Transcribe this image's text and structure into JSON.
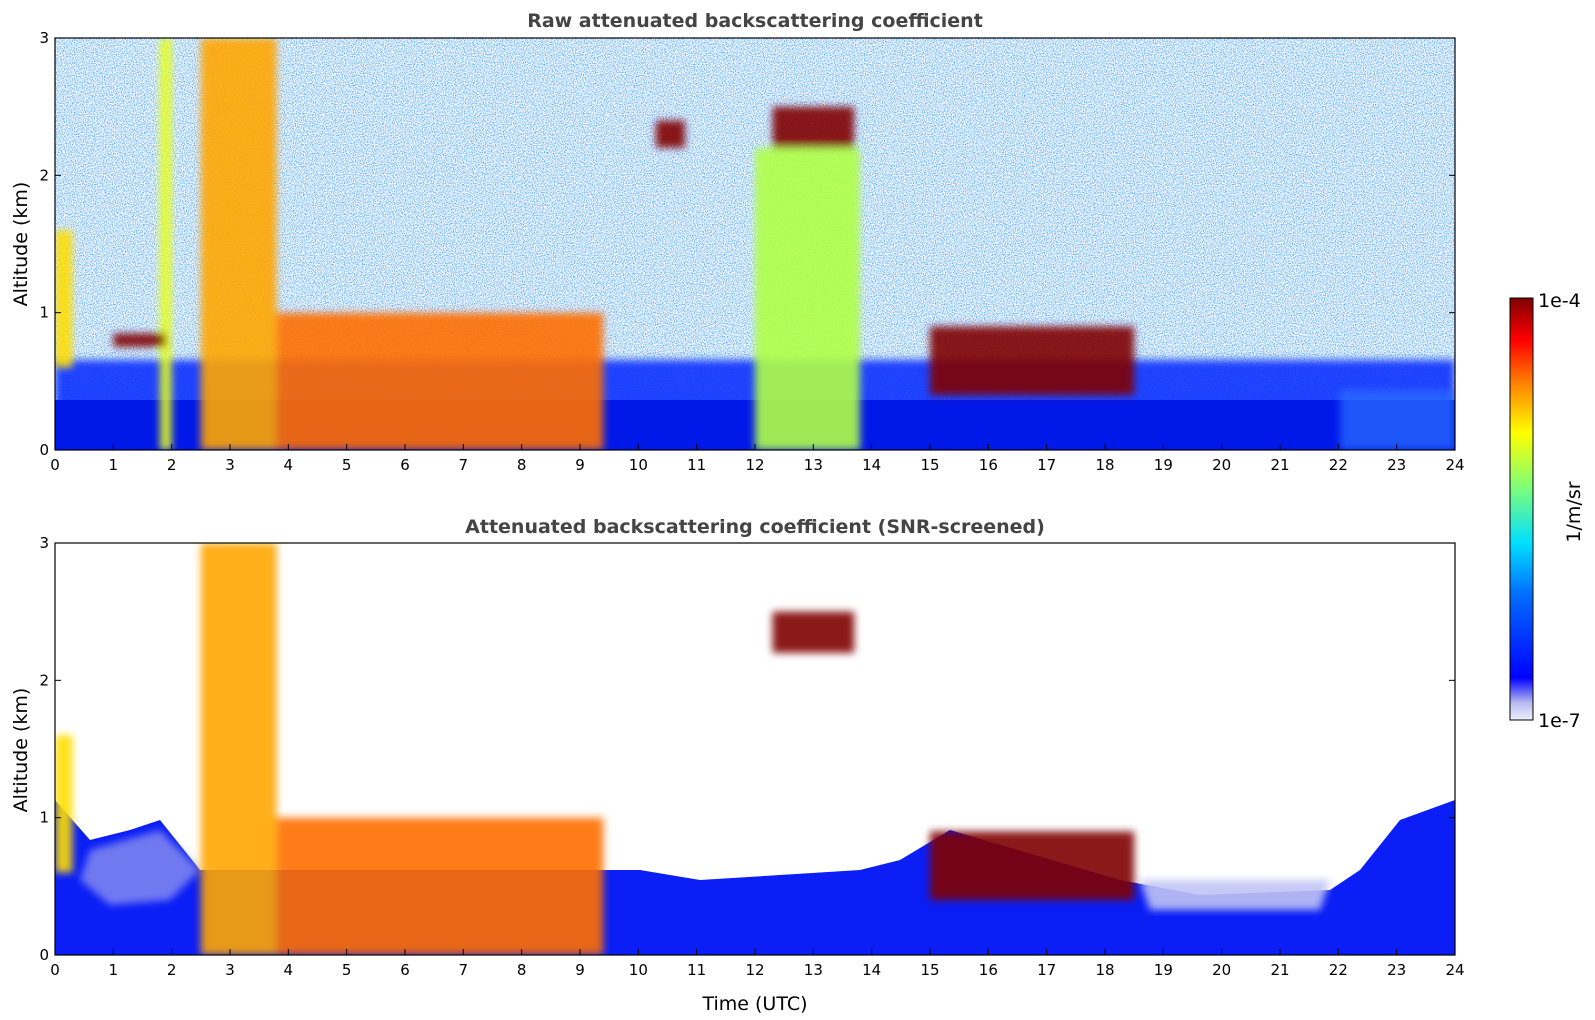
{
  "chart_data": [
    {
      "type": "heatmap",
      "title": "Raw attenuated backscattering coefficient",
      "xlabel": "",
      "ylabel": "Altitude (km)",
      "xlim": [
        0,
        24
      ],
      "ylim": [
        0,
        3
      ],
      "xticks": [
        "0",
        "1",
        "2",
        "3",
        "4",
        "5",
        "6",
        "7",
        "8",
        "9",
        "10",
        "11",
        "12",
        "13",
        "14",
        "15",
        "16",
        "17",
        "18",
        "19",
        "20",
        "21",
        "22",
        "23",
        "24"
      ],
      "yticks": [
        "0",
        "1",
        "2",
        "3"
      ],
      "colorscale": "jet",
      "features": [
        {
          "x": [
            0,
            0.3
          ],
          "y": [
            0.6,
            1.6
          ],
          "level": 0.75
        },
        {
          "x": [
            1.8,
            2.0
          ],
          "y": [
            0.0,
            3.0
          ],
          "level": 0.7
        },
        {
          "x": [
            2.5,
            3.8
          ],
          "y": [
            0.0,
            3.0
          ],
          "level": 0.8
        },
        {
          "x": [
            3.8,
            9.4
          ],
          "y": [
            0.0,
            1.0
          ],
          "level": 0.85
        },
        {
          "x": [
            10.3,
            10.8
          ],
          "y": [
            2.2,
            2.4
          ],
          "level": 1.0
        },
        {
          "x": [
            12.3,
            13.7
          ],
          "y": [
            2.2,
            2.5
          ],
          "level": 1.0
        },
        {
          "x": [
            12.0,
            13.8
          ],
          "y": [
            0.0,
            2.2
          ],
          "level": 0.65
        },
        {
          "x": [
            15.0,
            18.5
          ],
          "y": [
            0.4,
            0.9
          ],
          "level": 1.0
        },
        {
          "x": [
            1.0,
            1.9
          ],
          "y": [
            0.75,
            0.85
          ],
          "level": 1.0
        }
      ]
    },
    {
      "type": "heatmap",
      "title": "Attenuated backscattering coefficient (SNR-screened)",
      "xlabel": "Time (UTC)",
      "ylabel": "Altitude (km)",
      "xlim": [
        0,
        24
      ],
      "ylim": [
        0,
        3
      ],
      "xticks": [
        "0",
        "1",
        "2",
        "3",
        "4",
        "5",
        "6",
        "7",
        "8",
        "9",
        "10",
        "11",
        "12",
        "13",
        "14",
        "15",
        "16",
        "17",
        "18",
        "19",
        "20",
        "21",
        "22",
        "23",
        "24"
      ],
      "yticks": [
        "0",
        "1",
        "2",
        "3"
      ],
      "colorscale": "jet",
      "features": [
        {
          "x": [
            0,
            0.3
          ],
          "y": [
            0.6,
            1.6
          ],
          "level": 0.75
        },
        {
          "x": [
            2.5,
            3.8
          ],
          "y": [
            0.0,
            3.0
          ],
          "level": 0.8
        },
        {
          "x": [
            3.8,
            9.4
          ],
          "y": [
            0.0,
            1.0
          ],
          "level": 0.85
        },
        {
          "x": [
            12.3,
            13.7
          ],
          "y": [
            2.2,
            2.5
          ],
          "level": 1.0
        },
        {
          "x": [
            15.0,
            18.5
          ],
          "y": [
            0.4,
            0.9
          ],
          "level": 1.0
        }
      ]
    }
  ],
  "colorbar": {
    "max_label": "1e-4",
    "min_label": "1e-7",
    "label": "1/m/sr",
    "colors": [
      "#7f0000",
      "#ff0000",
      "#ff7f00",
      "#ffff00",
      "#7fff7f",
      "#00ffff",
      "#007fff",
      "#0000ff",
      "#00007f"
    ]
  }
}
